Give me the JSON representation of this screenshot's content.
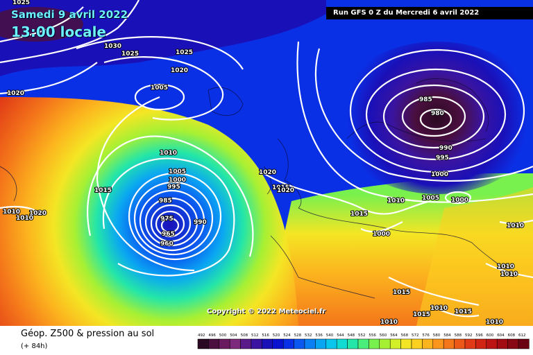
{
  "header": {
    "date": "Samedi 9 avril 2022",
    "time": "13:00 locale",
    "run_info": "Run GFS 0 Z du Mercredi 6 avril 2022"
  },
  "copyright": "Copyright © 2022 Meteociel.fr",
  "footer": {
    "title": "Géop. Z500 & pression au sol",
    "subtitle": "(+ 84h)"
  },
  "legend": {
    "ticks": [
      "492",
      "496",
      "500",
      "504",
      "508",
      "512",
      "516",
      "520",
      "524",
      "528",
      "532",
      "536",
      "540",
      "544",
      "548",
      "552",
      "556",
      "560",
      "564",
      "568",
      "572",
      "576",
      "580",
      "584",
      "588",
      "592",
      "596",
      "600",
      "604",
      "608",
      "612"
    ],
    "colors": [
      "#2a0a22",
      "#4a0f3e",
      "#6a1a5e",
      "#7e2a7c",
      "#5a1a8a",
      "#3a14a0",
      "#1a10b8",
      "#0a14d0",
      "#0a30e6",
      "#0a58f0",
      "#0a80f4",
      "#0aa6f2",
      "#0ac6ec",
      "#10dcd4",
      "#24e6a8",
      "#4aee7a",
      "#78f04e",
      "#a6f034",
      "#d2ee28",
      "#f4e624",
      "#fcd020",
      "#fcb41e",
      "#fa961c",
      "#f4761a",
      "#ec5818",
      "#e03a16",
      "#d02414",
      "#bc1414",
      "#a40c14",
      "#880814",
      "#6a0412"
    ]
  },
  "isobars": {
    "labels": [
      "1025",
      "1030",
      "1025",
      "1025",
      "1020",
      "1020",
      "1005",
      "1010",
      "1005",
      "1000",
      "995",
      "985",
      "975",
      "965",
      "960",
      "990",
      "1015",
      "1010",
      "1020",
      "1020",
      "1015",
      "1020",
      "1010",
      "1015",
      "1000",
      "1010",
      "985",
      "980",
      "990",
      "995",
      "1000",
      "1005",
      "1000",
      "1010",
      "1010",
      "1010",
      "1015",
      "1015",
      "1010",
      "1015",
      "1010",
      "1010"
    ]
  },
  "colors": {
    "isobar": "#ffffff",
    "run_box_bg": "#000000",
    "date_text": "#6cf3ff"
  }
}
